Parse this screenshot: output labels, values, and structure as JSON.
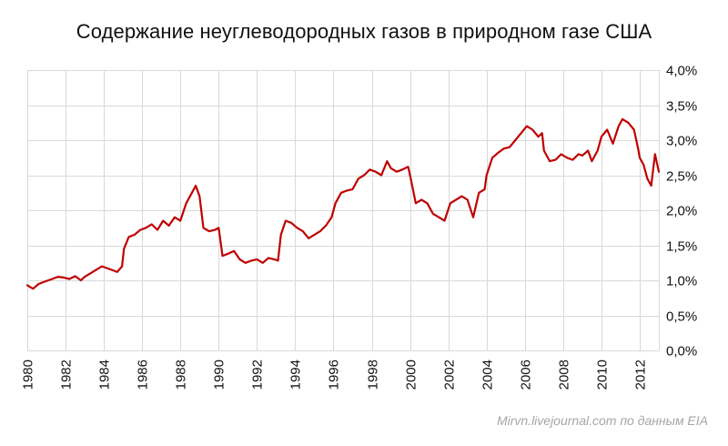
{
  "header": {
    "title": "Содержание неуглеводородных газов в природном газе США"
  },
  "footer": {
    "credit": "Mirvn.livejournal.com по данным EIA"
  },
  "chart_data": {
    "type": "line",
    "title": "Содержание неуглеводородных газов в природном газе США",
    "xlabel": "",
    "ylabel": "",
    "xlim": [
      1980,
      2013
    ],
    "ylim": [
      0,
      4
    ],
    "y_ticks": [
      "0,0%",
      "0,5%",
      "1,0%",
      "1,5%",
      "2,0%",
      "2,5%",
      "3,0%",
      "3,5%",
      "4,0%"
    ],
    "x_ticks": [
      "1980",
      "1982",
      "1984",
      "1986",
      "1988",
      "1990",
      "1992",
      "1994",
      "1996",
      "1998",
      "2000",
      "2002",
      "2004",
      "2006",
      "2008",
      "2010",
      "2012"
    ],
    "y_axis_position": "right",
    "grid": true,
    "line_color": "#c00000",
    "series": [
      {
        "values_unit": "percent",
        "x": [
          1980.0,
          1980.3,
          1980.6,
          1980.9,
          1981.1,
          1981.3,
          1981.6,
          1981.9,
          1982.2,
          1982.5,
          1982.8,
          1983.0,
          1983.3,
          1983.6,
          1983.9,
          1984.1,
          1984.4,
          1984.7,
          1984.95,
          1985.05,
          1985.3,
          1985.6,
          1985.9,
          1986.2,
          1986.5,
          1986.8,
          1987.1,
          1987.4,
          1987.7,
          1988.0,
          1988.3,
          1988.6,
          1988.8,
          1989.0,
          1989.2,
          1989.5,
          1989.8,
          1990.0,
          1990.2,
          1990.5,
          1990.8,
          1991.1,
          1991.4,
          1991.7,
          1992.0,
          1992.3,
          1992.6,
          1992.9,
          1993.1,
          1993.25,
          1993.5,
          1993.8,
          1994.1,
          1994.4,
          1994.7,
          1995.0,
          1995.3,
          1995.6,
          1995.9,
          1996.1,
          1996.4,
          1996.7,
          1997.0,
          1997.3,
          1997.6,
          1997.9,
          1998.2,
          1998.5,
          1998.8,
          1999.0,
          1999.3,
          1999.6,
          1999.9,
          2000.0,
          2000.3,
          2000.6,
          2000.9,
          2001.2,
          2001.5,
          2001.8,
          2002.1,
          2002.4,
          2002.7,
          2003.0,
          2003.3,
          2003.6,
          2003.9,
          2004.0,
          2004.3,
          2004.6,
          2004.9,
          2005.2,
          2005.5,
          2005.8,
          2006.1,
          2006.4,
          2006.7,
          2006.9,
          2007.0,
          2007.3,
          2007.6,
          2007.9,
          2008.2,
          2008.5,
          2008.8,
          2009.0,
          2009.3,
          2009.5,
          2009.8,
          2010.0,
          2010.3,
          2010.6,
          2010.9,
          2011.1,
          2011.4,
          2011.7,
          2011.9,
          2012.0,
          2012.2,
          2012.4,
          2012.6,
          2012.8,
          2013.0
        ],
        "values": [
          0.93,
          0.88,
          0.95,
          0.98,
          1.0,
          1.02,
          1.05,
          1.04,
          1.02,
          1.06,
          1.0,
          1.05,
          1.1,
          1.15,
          1.2,
          1.18,
          1.15,
          1.12,
          1.2,
          1.45,
          1.62,
          1.65,
          1.72,
          1.75,
          1.8,
          1.72,
          1.85,
          1.78,
          1.9,
          1.85,
          2.1,
          2.25,
          2.35,
          2.2,
          1.75,
          1.7,
          1.72,
          1.75,
          1.35,
          1.38,
          1.42,
          1.3,
          1.25,
          1.28,
          1.3,
          1.25,
          1.32,
          1.3,
          1.28,
          1.65,
          1.85,
          1.82,
          1.75,
          1.7,
          1.6,
          1.65,
          1.7,
          1.78,
          1.9,
          2.1,
          2.25,
          2.28,
          2.3,
          2.45,
          2.5,
          2.58,
          2.55,
          2.5,
          2.7,
          2.6,
          2.55,
          2.58,
          2.62,
          2.5,
          2.1,
          2.15,
          2.1,
          1.95,
          1.9,
          1.85,
          2.1,
          2.15,
          2.2,
          2.15,
          1.9,
          2.25,
          2.3,
          2.5,
          2.75,
          2.82,
          2.88,
          2.9,
          3.0,
          3.1,
          3.2,
          3.15,
          3.05,
          3.1,
          2.85,
          2.7,
          2.72,
          2.8,
          2.75,
          2.72,
          2.8,
          2.78,
          2.85,
          2.7,
          2.85,
          3.05,
          3.15,
          2.95,
          3.2,
          3.3,
          3.25,
          3.15,
          2.9,
          2.75,
          2.65,
          2.45,
          2.35,
          2.8,
          2.55
        ]
      }
    ]
  }
}
